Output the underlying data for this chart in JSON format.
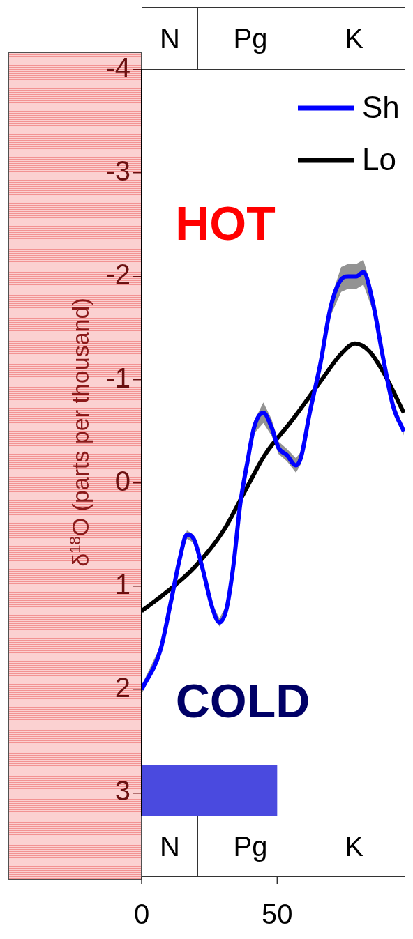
{
  "chart_data": {
    "type": "line",
    "ylabel": "δ$^{18}$O (parts per thousand)",
    "xlim": [
      0,
      97
    ],
    "xticks": [
      0,
      50
    ],
    "ylim": [
      3.22,
      -4
    ],
    "yticks": [
      -4,
      -3,
      -2,
      -1,
      0,
      1,
      2,
      3
    ],
    "legend": "top right",
    "grid": false,
    "marker": "none",
    "line_style": "solid",
    "series": [
      {
        "name": "Sh",
        "color": "#0000ff",
        "x": [
          0,
          6.9,
          10.8,
          14,
          16.7,
          19.2,
          22.3,
          26.2,
          28.7,
          31.3,
          33.8,
          36.4,
          39,
          41.5,
          44.9,
          47.9,
          50.5,
          53.6,
          56.9,
          58.7,
          62,
          65.9,
          69.7,
          73.6,
          76.2,
          79.2,
          81.8,
          85.1,
          89,
          92.8,
          96.7
        ],
        "values": [
          2.0,
          1.62,
          1.15,
          0.74,
          0.5,
          0.54,
          0.81,
          1.22,
          1.35,
          1.22,
          0.81,
          0.2,
          -0.2,
          -0.54,
          -0.68,
          -0.54,
          -0.34,
          -0.27,
          -0.17,
          -0.24,
          -0.68,
          -1.15,
          -1.7,
          -1.97,
          -2.0,
          -2.0,
          -2.04,
          -1.77,
          -1.22,
          -0.74,
          -0.5
        ],
        "lower": [
          2.04,
          1.66,
          1.19,
          0.78,
          0.54,
          0.58,
          0.85,
          1.26,
          1.39,
          1.26,
          0.85,
          0.24,
          -0.16,
          -0.48,
          -0.58,
          -0.46,
          -0.28,
          -0.21,
          -0.1,
          -0.18,
          -0.62,
          -1.09,
          -1.62,
          -1.85,
          -1.88,
          -1.88,
          -1.92,
          -1.68,
          -1.17,
          -0.7,
          -0.46
        ],
        "upper": [
          1.96,
          1.58,
          1.11,
          0.7,
          0.46,
          0.5,
          0.77,
          1.18,
          1.31,
          1.18,
          0.77,
          0.16,
          -0.24,
          -0.6,
          -0.78,
          -0.62,
          -0.4,
          -0.33,
          -0.24,
          -0.3,
          -0.74,
          -1.21,
          -1.78,
          -2.09,
          -2.12,
          -2.12,
          -2.16,
          -1.86,
          -1.27,
          -0.78,
          -0.54
        ]
      },
      {
        "name": "Lo",
        "color": "#000000",
        "x": [
          0,
          9.5,
          19.7,
          30,
          37.7,
          45.4,
          55.6,
          65.9,
          73.6,
          78.7,
          83.8,
          89,
          96.7
        ],
        "values": [
          1.24,
          1.05,
          0.81,
          0.47,
          0.1,
          -0.27,
          -0.61,
          -0.98,
          -1.25,
          -1.35,
          -1.28,
          -1.08,
          -0.68
        ]
      }
    ],
    "bands": [
      {
        "axis": "x",
        "from": 0,
        "to": 50,
        "color": "#4a4adf"
      }
    ],
    "annotations": [
      "HOT",
      "COLD",
      "N",
      "Pg",
      "K"
    ]
  }
}
